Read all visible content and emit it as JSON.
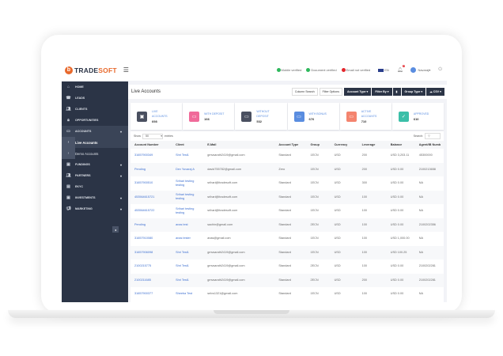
{
  "brand": {
    "logo_letter": "b",
    "name_a": "TRADE",
    "name_b": "SOFT"
  },
  "topbar": {
    "mobile": "Mobile verified",
    "document": "Document verified",
    "email": "Email not verified",
    "language": "EN",
    "notif_count": "0",
    "user": "Navaraj",
    "colors": {
      "verified": "#2eb85c",
      "not_verified": "#e3262c"
    }
  },
  "sidebar": {
    "items": [
      {
        "icon": "home",
        "label": "HOME"
      },
      {
        "icon": "phone",
        "label": "LEADS"
      },
      {
        "icon": "users",
        "label": "CLIENTS"
      },
      {
        "icon": "lock",
        "label": "OPPORTUNITIES"
      },
      {
        "icon": "card",
        "label": "ACCOUNTS",
        "arrow": "▾"
      },
      {
        "icon": "chevron-right",
        "label": "Live Accounts"
      },
      {
        "icon": "chevron-right",
        "label": "Demo Accounts"
      },
      {
        "icon": "money",
        "label": "FUNDINGS",
        "arrow": "▾"
      },
      {
        "icon": "users",
        "label": "PARTNERS",
        "arrow": "▾"
      },
      {
        "icon": "doc",
        "label": "EKYC"
      },
      {
        "icon": "money",
        "label": "INVESTMENTS",
        "arrow": "▾"
      },
      {
        "icon": "megaphone",
        "label": "MARKETING",
        "arrow": "▾"
      }
    ]
  },
  "page": {
    "title": "Live Accounts",
    "buttons": {
      "column_search": "Column Search",
      "filter_options": "Filter Options",
      "account_type": "Account Type ▾",
      "filter_by": "Filter By ▾",
      "print": "▮",
      "group_type": "Group Type ▾",
      "csv": "☁ CSV ▾"
    }
  },
  "cards": [
    {
      "label": "LIVE ACCOUNTS",
      "value": "698",
      "color": "#4a5060"
    },
    {
      "label": "WITH DEPOSIT",
      "value": "166",
      "color": "#f06b9a"
    },
    {
      "label": "WITHOUT DEPOSIT",
      "value": "532",
      "color": "#4a5060"
    },
    {
      "label": "WITH BONUS",
      "value": "676",
      "color": "#5a8de0"
    },
    {
      "label": "ACTIVE ACCOUNTS",
      "value": "710",
      "color": "#f4846e"
    },
    {
      "label": "APPROVED",
      "value": "610",
      "color": "#3bbfa8"
    }
  ],
  "table": {
    "show": "Show",
    "entries_value": "50",
    "entries": "entries",
    "search_label": "Search:",
    "columns": [
      "Account Number",
      "Client",
      "E-Mail",
      "Account Type",
      "Group",
      "Currency",
      "Leverage",
      "Balance",
      "Agent/IB Numb"
    ],
    "rows": [
      [
        "31657900349",
        "Shri Test1",
        "gmvsarath2419@gmail.com",
        "Standard",
        "1ECN",
        "USD",
        "200",
        "USD 3,203.11",
        "45300000"
      ],
      [
        "Pending",
        "Dev Yuvaraj A",
        "david755782@gmail.com",
        "Zero",
        "1ECN",
        "USD",
        "200",
        "USD 0.00",
        "2100213658"
      ],
      [
        "31657900510",
        "Srihari testing testing",
        "srihari@itradesoft.com",
        "Standard",
        "1ECN",
        "USD",
        "300",
        "USD 0.00",
        "NA"
      ],
      [
        "453564615721",
        "Srihari testing testing",
        "srihari@itradesoft.com",
        "Standard",
        "1ECN",
        "USD",
        "100",
        "USD 0.00",
        "NA"
      ],
      [
        "453564615722",
        "Srihari testing testing",
        "srihari@itradesoft.com",
        "Standard",
        "1ECN",
        "USD",
        "100",
        "USD 0.00",
        "NA"
      ],
      [
        "Pending",
        "anas test",
        "sachin@gmail.com",
        "Standard",
        "2ECN",
        "USD",
        "100",
        "USD 0.00",
        "2100202356"
      ],
      [
        "31657910080",
        "anas tester",
        "anas@gmail.com",
        "Standard",
        "1ECN",
        "USD",
        "100",
        "USD 1,000.00",
        "NA"
      ],
      [
        "31657906098",
        "Shri Test1",
        "gmvsarath2419@gmail.com",
        "Standard",
        "1ECN",
        "USD",
        "100",
        "USD 100.25",
        "NA"
      ],
      [
        "2100215775",
        "Shri Test1",
        "gmvsarath2419@gmail.com",
        "Standard",
        "2ECN",
        "USD",
        "100",
        "USD 0.00",
        "2100202281"
      ],
      [
        "2100211685",
        "Shri Test1",
        "gmvsarath2419@gmail.com",
        "Standard",
        "2ECN",
        "USD",
        "200",
        "USD 0.00",
        "2100202281"
      ],
      [
        "31657900377",
        "Sheeba Test",
        "selvs1321@gmail.com",
        "Standard",
        "1ECN",
        "USD",
        "100",
        "USD 0.00",
        "NA"
      ]
    ]
  }
}
